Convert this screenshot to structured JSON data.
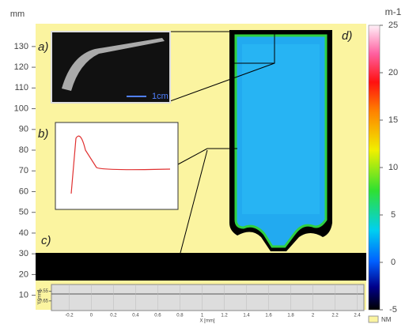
{
  "chart_data": {
    "type": "heatmap",
    "y_label": "mm",
    "ylim": [
      3,
      141
    ],
    "yticks": [
      10,
      20,
      30,
      40,
      50,
      60,
      70,
      80,
      90,
      100,
      110,
      120,
      130
    ],
    "colorbar_label": "m-1",
    "clim": [
      -5,
      25
    ],
    "cticks": [
      -5,
      0,
      5,
      10,
      15,
      20,
      25
    ],
    "background": "#fbf4a0",
    "panels": [
      "a)",
      "b)",
      "c)",
      "d)"
    ],
    "scale_bar": "1cm",
    "strip": {
      "x_label": "X [mm]",
      "y_label": "Y [mm]",
      "xlim": [
        -0.36,
        2.46
      ],
      "xticks": [
        -0.2,
        0,
        0.2,
        0.4,
        0.6,
        0.8,
        1,
        1.2,
        1.4,
        1.6,
        1.8,
        2,
        2.2,
        2.4
      ],
      "ylim": [
        -0.75,
        -0.48
      ],
      "yticks": [
        -0.55,
        -0.65
      ]
    },
    "legend": "NM"
  }
}
